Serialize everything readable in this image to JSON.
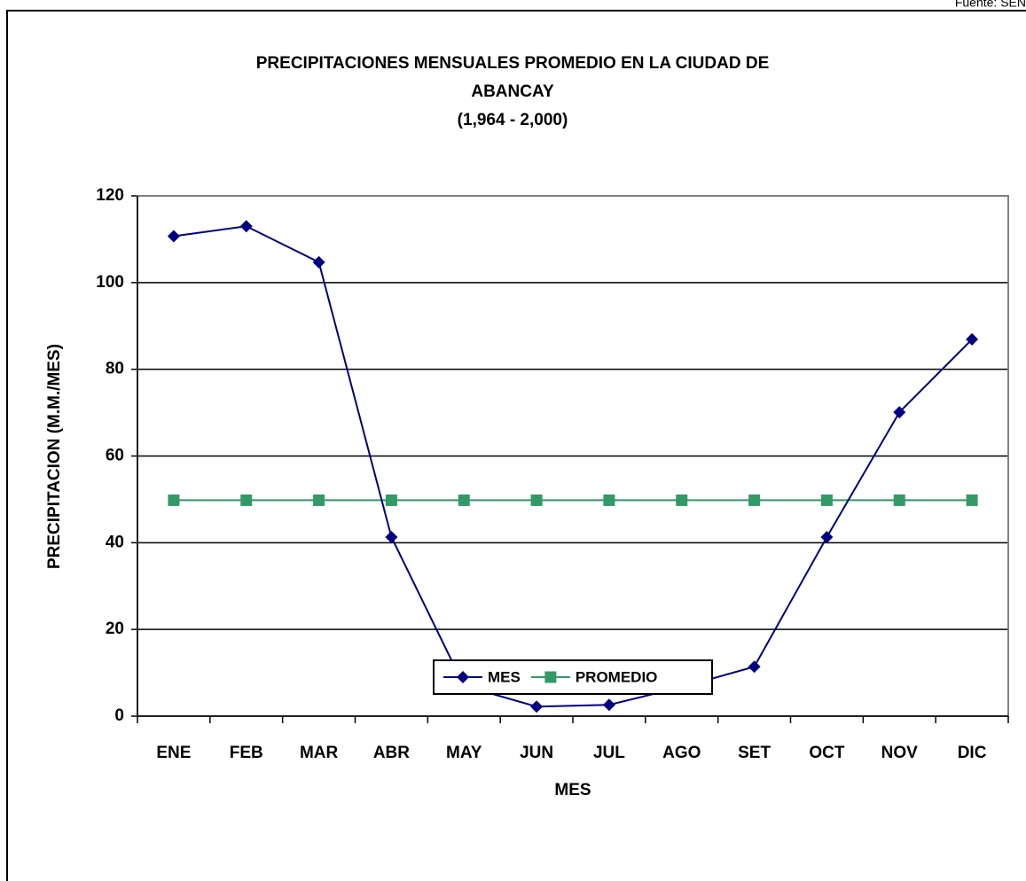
{
  "source": "Fuente: SEN",
  "chart_data": {
    "type": "line",
    "title": [
      "PRECIPITACIONES MENSUALES PROMEDIO EN LA CIUDAD DE",
      "ABANCAY",
      "(1,964 - 2,000)"
    ],
    "x_label": "MES",
    "y_label": "PRECIPITACION (M.M./MES)",
    "categories": [
      "ENE",
      "FEB",
      "MAR",
      "ABR",
      "MAY",
      "JUN",
      "JUL",
      "AGO",
      "SET",
      "OCT",
      "NOV",
      "DIC"
    ],
    "series": [
      {
        "name": "MES",
        "color": "#000080",
        "marker": "diamond",
        "values": [
          110.7,
          113,
          104.7,
          41.3,
          7,
          2.2,
          2.6,
          6.7,
          11.4,
          41.3,
          70.1,
          86.9
        ]
      },
      {
        "name": "PROMEDIO",
        "color": "#339966",
        "marker": "square",
        "values": [
          49.8,
          49.8,
          49.8,
          49.8,
          49.8,
          49.8,
          49.8,
          49.8,
          49.8,
          49.8,
          49.8,
          49.8
        ]
      }
    ],
    "ylim": [
      0,
      120
    ],
    "yticks": [
      0,
      20,
      40,
      60,
      80,
      100,
      120
    ],
    "grid": true,
    "legend": "bottom"
  }
}
